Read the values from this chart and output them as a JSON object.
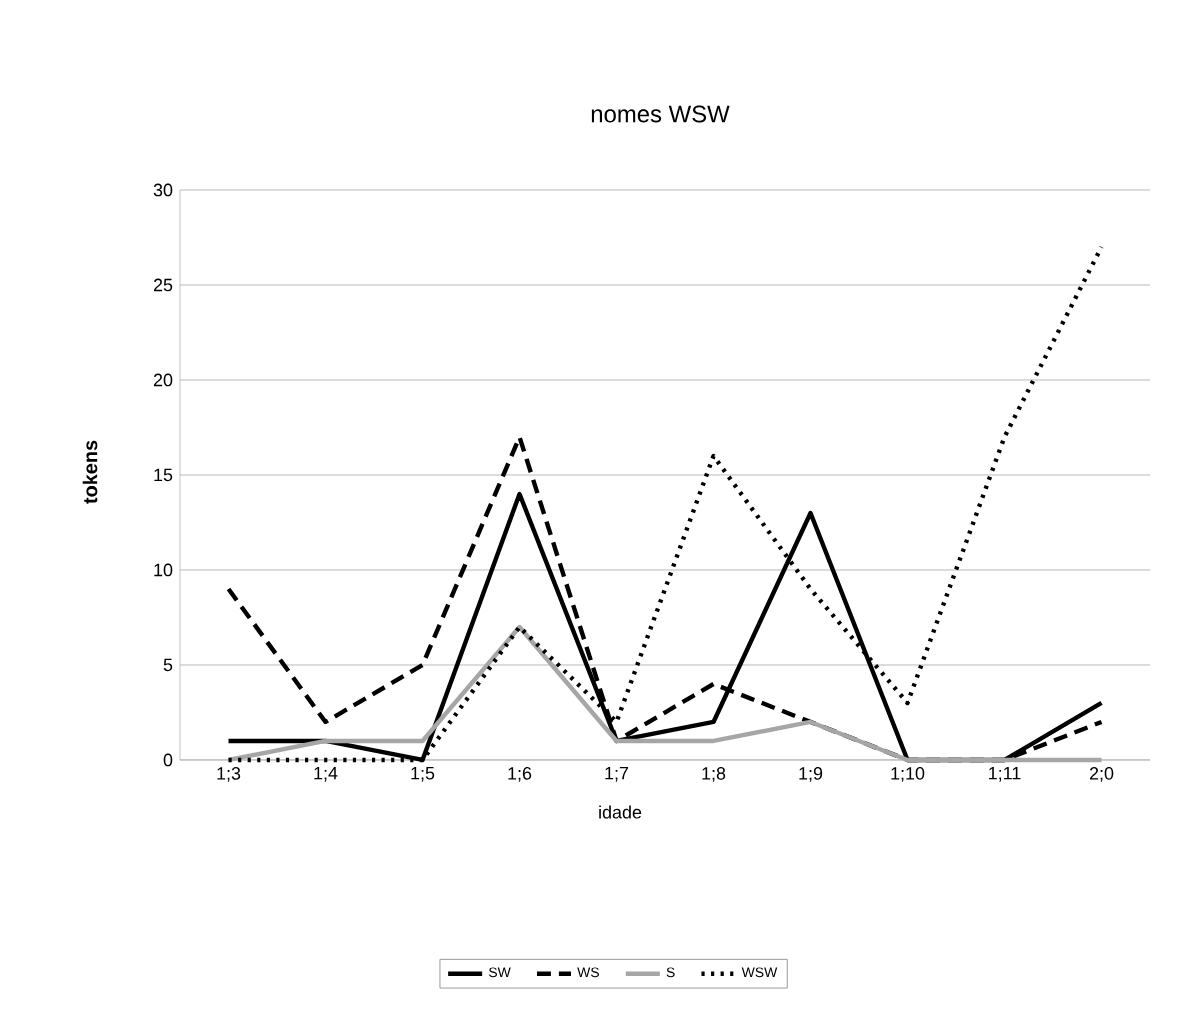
{
  "chart_data": {
    "type": "line",
    "title": "nomes WSW",
    "xlabel": "idade",
    "ylabel": "tokens",
    "categories": [
      "1;3",
      "1;4",
      "1;5",
      "1;6",
      "1;7",
      "1;8",
      "1;9",
      "1;10",
      "1;11",
      "2;0"
    ],
    "series": [
      {
        "name": "SW",
        "color": "#000000",
        "line_style": "solid",
        "values": [
          1,
          1,
          0,
          14,
          1,
          2,
          13,
          0,
          0,
          3
        ]
      },
      {
        "name": "WS",
        "color": "#000000",
        "line_style": "dashed",
        "values": [
          9,
          2,
          5,
          17,
          1,
          4,
          2,
          0,
          0,
          2
        ]
      },
      {
        "name": "S",
        "color": "#a6a6a6",
        "line_style": "solid",
        "values": [
          0,
          1,
          1,
          7,
          1,
          1,
          2,
          0,
          0,
          0
        ]
      },
      {
        "name": "WSW",
        "color": "#000000",
        "line_style": "dotted",
        "values": [
          0,
          0,
          0,
          7,
          2,
          16,
          9,
          3,
          17,
          27
        ]
      }
    ],
    "ylim": [
      0,
      30
    ],
    "yticks": [
      0,
      5,
      10,
      15,
      20,
      25,
      30
    ],
    "grid": "y",
    "legend": "bottom",
    "marker": "none"
  }
}
